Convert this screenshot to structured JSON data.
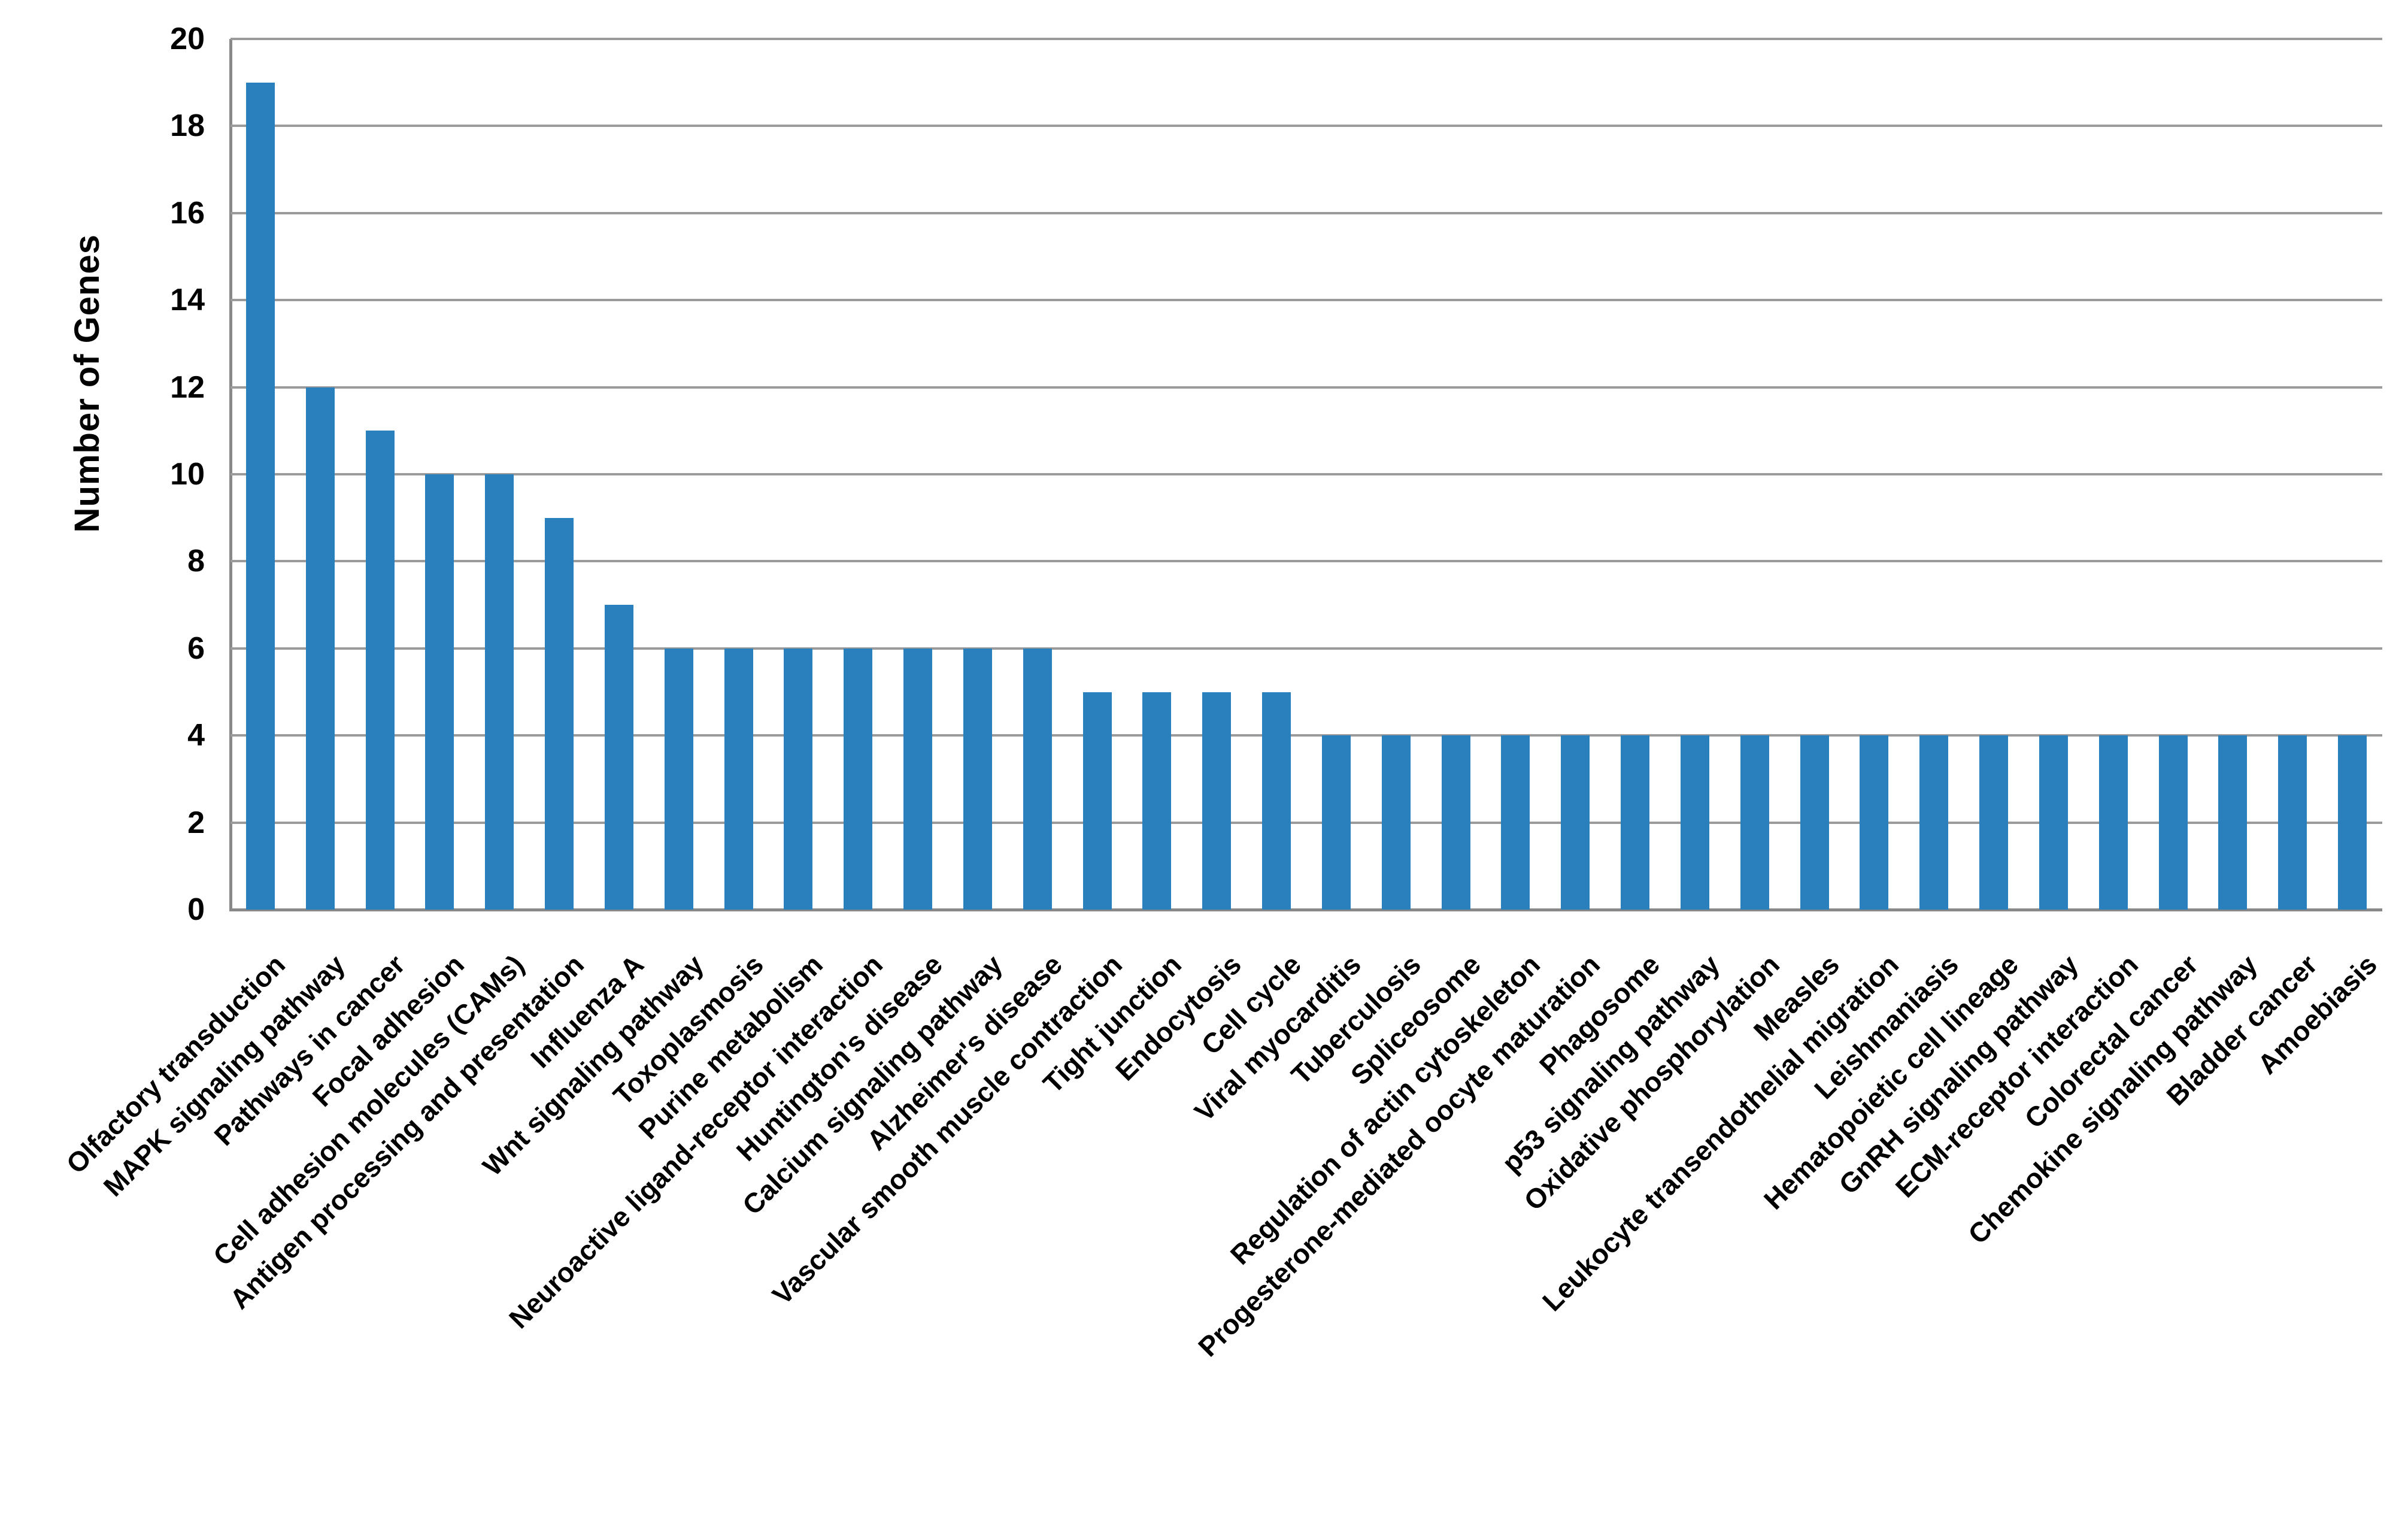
{
  "chart_data": {
    "type": "bar",
    "title": "",
    "ylabel": "Number of Genes",
    "xlabel": "",
    "ylim": [
      0,
      20
    ],
    "yticks": [
      0,
      2,
      4,
      6,
      8,
      10,
      12,
      14,
      16,
      18,
      20
    ],
    "grid": true,
    "legend": "none",
    "bar_color": "#2A80BD",
    "gridline_color": "#9B9B9B",
    "axis_color": "#898989",
    "categories": [
      "Olfactory transduction",
      "MAPK signaling pathway",
      "Pathways in cancer",
      "Focal adhesion",
      "Cell adhesion molecules (CAMs)",
      "Antigen processing and presentation",
      "Influenza A",
      "Wnt signaling pathway",
      "Toxoplasmosis",
      "Purine metabolism",
      "Neuroactive ligand-receptor interaction",
      "Huntington's disease",
      "Calcium signaling pathway",
      "Alzheimer's disease",
      "Vascular smooth muscle contraction",
      "Tight junction",
      "Endocytosis",
      "Cell cycle",
      "Viral myocarditis",
      "Tuberculosis",
      "Spliceosome",
      "Regulation of actin cytoskeleton",
      "Progesterone-mediated oocyte maturation",
      "Phagosome",
      "p53 signaling pathway",
      "Oxidative phosphorylation",
      "Measles",
      "Leukocyte transendothelial migration",
      "Leishmaniasis",
      "Hematopoietic cell lineage",
      "GnRH signaling pathway",
      "ECM-receptor interaction",
      "Colorectal cancer",
      "Chemokine signaling pathway",
      "Bladder cancer",
      "Amoebiasis"
    ],
    "values": [
      19,
      12,
      11,
      10,
      10,
      9,
      7,
      6,
      6,
      6,
      6,
      6,
      6,
      6,
      5,
      5,
      5,
      5,
      4,
      4,
      4,
      4,
      4,
      4,
      4,
      4,
      4,
      4,
      4,
      4,
      4,
      4,
      4,
      4,
      4,
      4
    ]
  }
}
